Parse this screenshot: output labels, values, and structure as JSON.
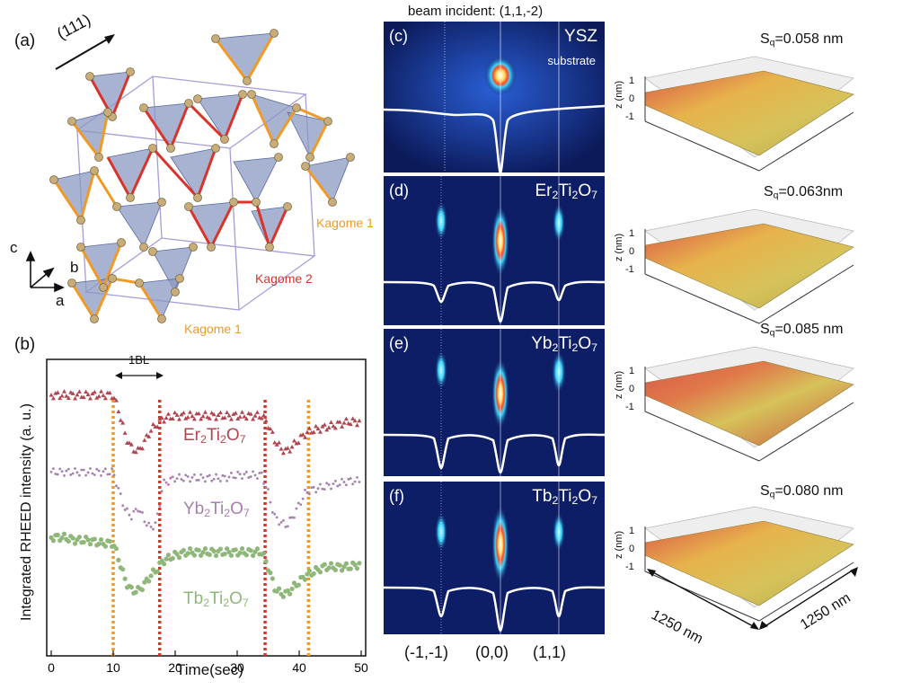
{
  "panel_a": {
    "label": "(a)",
    "direction": "(111)",
    "kagome1_upper": "Kagome 1",
    "kagome2": "Kagome 2",
    "kagome1_lower": "Kagome 1",
    "axis_c": "c",
    "axis_b": "b",
    "axis_a": "a"
  },
  "panel_b": {
    "label": "(b)",
    "ylabel": "Integrated RHEED intensity (a. u.)",
    "xlabel": "Time(sec)",
    "bl_label": "1BL",
    "xticks": [
      "0",
      "10",
      "20",
      "30",
      "40",
      "50"
    ],
    "series_er": "Er2Ti2O7",
    "series_yb": "Yb2Ti2O7",
    "series_tb": "Tb2Ti2O7"
  },
  "chart_data": {
    "type": "scatter",
    "title": "",
    "xlabel": "Time(sec)",
    "ylabel": "Integrated RHEED intensity (a. u.)",
    "xlim": [
      0,
      50
    ],
    "ylim": [
      0,
      1
    ],
    "x": [
      0,
      2,
      4,
      6,
      8,
      10,
      11,
      12,
      13,
      14,
      15,
      16,
      17,
      18,
      20,
      22,
      24,
      26,
      28,
      30,
      32,
      34,
      35,
      36,
      37,
      38,
      39,
      40,
      41,
      42,
      44,
      46,
      48,
      50
    ],
    "series": [
      {
        "name": "Er2Ti2O7",
        "values": [
          0.88,
          0.88,
          0.88,
          0.88,
          0.88,
          0.88,
          0.82,
          0.74,
          0.7,
          0.69,
          0.72,
          0.76,
          0.78,
          0.8,
          0.81,
          0.81,
          0.81,
          0.81,
          0.81,
          0.81,
          0.81,
          0.81,
          0.78,
          0.73,
          0.7,
          0.69,
          0.71,
          0.73,
          0.75,
          0.76,
          0.77,
          0.78,
          0.79,
          0.79
        ]
      },
      {
        "name": "Yb2Ti2O7",
        "values": [
          0.62,
          0.62,
          0.62,
          0.62,
          0.62,
          0.62,
          0.55,
          0.49,
          0.47,
          0.5,
          0.46,
          0.43,
          0.45,
          0.58,
          0.6,
          0.6,
          0.6,
          0.6,
          0.6,
          0.61,
          0.61,
          0.61,
          0.55,
          0.47,
          0.45,
          0.44,
          0.47,
          0.51,
          0.55,
          0.56,
          0.57,
          0.58,
          0.59,
          0.59
        ]
      },
      {
        "name": "Tb2Ti2O7",
        "values": [
          0.4,
          0.4,
          0.39,
          0.39,
          0.38,
          0.38,
          0.32,
          0.25,
          0.22,
          0.22,
          0.24,
          0.27,
          0.29,
          0.32,
          0.34,
          0.35,
          0.35,
          0.35,
          0.35,
          0.35,
          0.35,
          0.35,
          0.3,
          0.23,
          0.21,
          0.21,
          0.23,
          0.25,
          0.27,
          0.28,
          0.3,
          0.3,
          0.3,
          0.31
        ]
      }
    ],
    "vlines": [
      {
        "x": 10,
        "color": "orange"
      },
      {
        "x": 17.5,
        "color": "red"
      },
      {
        "x": 34.5,
        "color": "red"
      },
      {
        "x": 41.5,
        "color": "orange"
      }
    ]
  },
  "rheed": {
    "beam_incident": "beam incident: (1,1,-2)",
    "panels": [
      {
        "letter": "(c)",
        "name": "YSZ",
        "sub": "substrate"
      },
      {
        "letter": "(d)",
        "name": "Er2Ti2O7",
        "sub": ""
      },
      {
        "letter": "(e)",
        "name": "Yb2Ti2O7",
        "sub": ""
      },
      {
        "letter": "(f)",
        "name": "Tb2Ti2O7",
        "sub": ""
      }
    ],
    "x_labels": [
      "(-1,-1)",
      "(0,0)",
      "(1,1)"
    ]
  },
  "afm": {
    "panels": [
      {
        "sq_label": "Sq=0.058 nm"
      },
      {
        "sq_label": "Sq=0.063nm"
      },
      {
        "sq_label": "Sq=0.085 nm"
      },
      {
        "sq_label": "Sq=0.080 nm"
      }
    ],
    "z_label": "z (nm)",
    "z_ticks": [
      "1",
      "0",
      "-1"
    ],
    "scale_left": "1250 nm",
    "scale_right": "1250 nm"
  },
  "colors": {
    "er": "#b0454f",
    "yb": "#a57fae",
    "tb": "#8fb77a",
    "orange_line": "#f09a26",
    "red_line": "#d8342c",
    "kagome_orange": "#f09a26",
    "kagome_red": "#d8342c",
    "tetra_fill": "#8b9ac2"
  }
}
